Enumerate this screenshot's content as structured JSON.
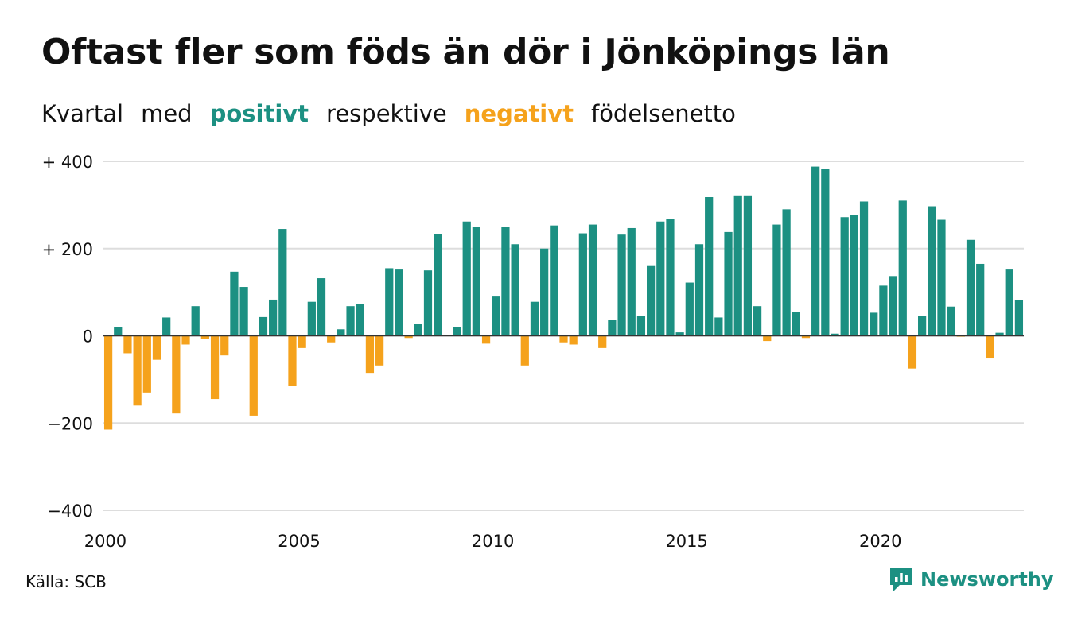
{
  "header": {
    "title": "Oftast fler som föds än dör i Jönköpings län",
    "subtitle": {
      "w1": "Kvartal",
      "w2": "med",
      "positive": "positivt",
      "w3": "respektive",
      "negative": "negativt",
      "w4": "födelsenetto"
    }
  },
  "footer": {
    "source": "Källa: SCB",
    "brand": "Newsworthy"
  },
  "colors": {
    "positive": "#1c9082",
    "negative": "#f5a21c",
    "grid": "#dddddd",
    "text": "#111111"
  },
  "chart_data": {
    "type": "bar",
    "ylim": [
      -400,
      400
    ],
    "y_ticks": [
      {
        "value": 400,
        "label": "+ 400"
      },
      {
        "value": 200,
        "label": "+ 200"
      },
      {
        "value": 0,
        "label": "0"
      },
      {
        "value": -200,
        "label": "−200"
      },
      {
        "value": -400,
        "label": "−400"
      }
    ],
    "x_ticks": [
      "2000",
      "2005",
      "2010",
      "2015",
      "2020"
    ],
    "x_start_year": 2000,
    "periods_per_year": 4,
    "grid": true,
    "values": [
      -215,
      20,
      -40,
      -160,
      -130,
      -55,
      42,
      -178,
      -20,
      68,
      -8,
      -145,
      -45,
      147,
      112,
      -183,
      43,
      83,
      245,
      -115,
      -28,
      78,
      132,
      -15,
      15,
      68,
      72,
      -85,
      -68,
      155,
      152,
      -5,
      27,
      150,
      233,
      0,
      20,
      262,
      250,
      -18,
      90,
      250,
      210,
      -68,
      78,
      200,
      253,
      -15,
      -20,
      235,
      255,
      -28,
      37,
      232,
      247,
      45,
      160,
      262,
      268,
      8,
      122,
      210,
      318,
      42,
      238,
      322,
      322,
      68,
      -12,
      255,
      290,
      55,
      -5,
      388,
      382,
      5,
      272,
      277,
      308,
      53,
      115,
      137,
      310,
      -75,
      45,
      297,
      266,
      67,
      -2,
      220,
      165,
      -52,
      7,
      152,
      82
    ]
  }
}
